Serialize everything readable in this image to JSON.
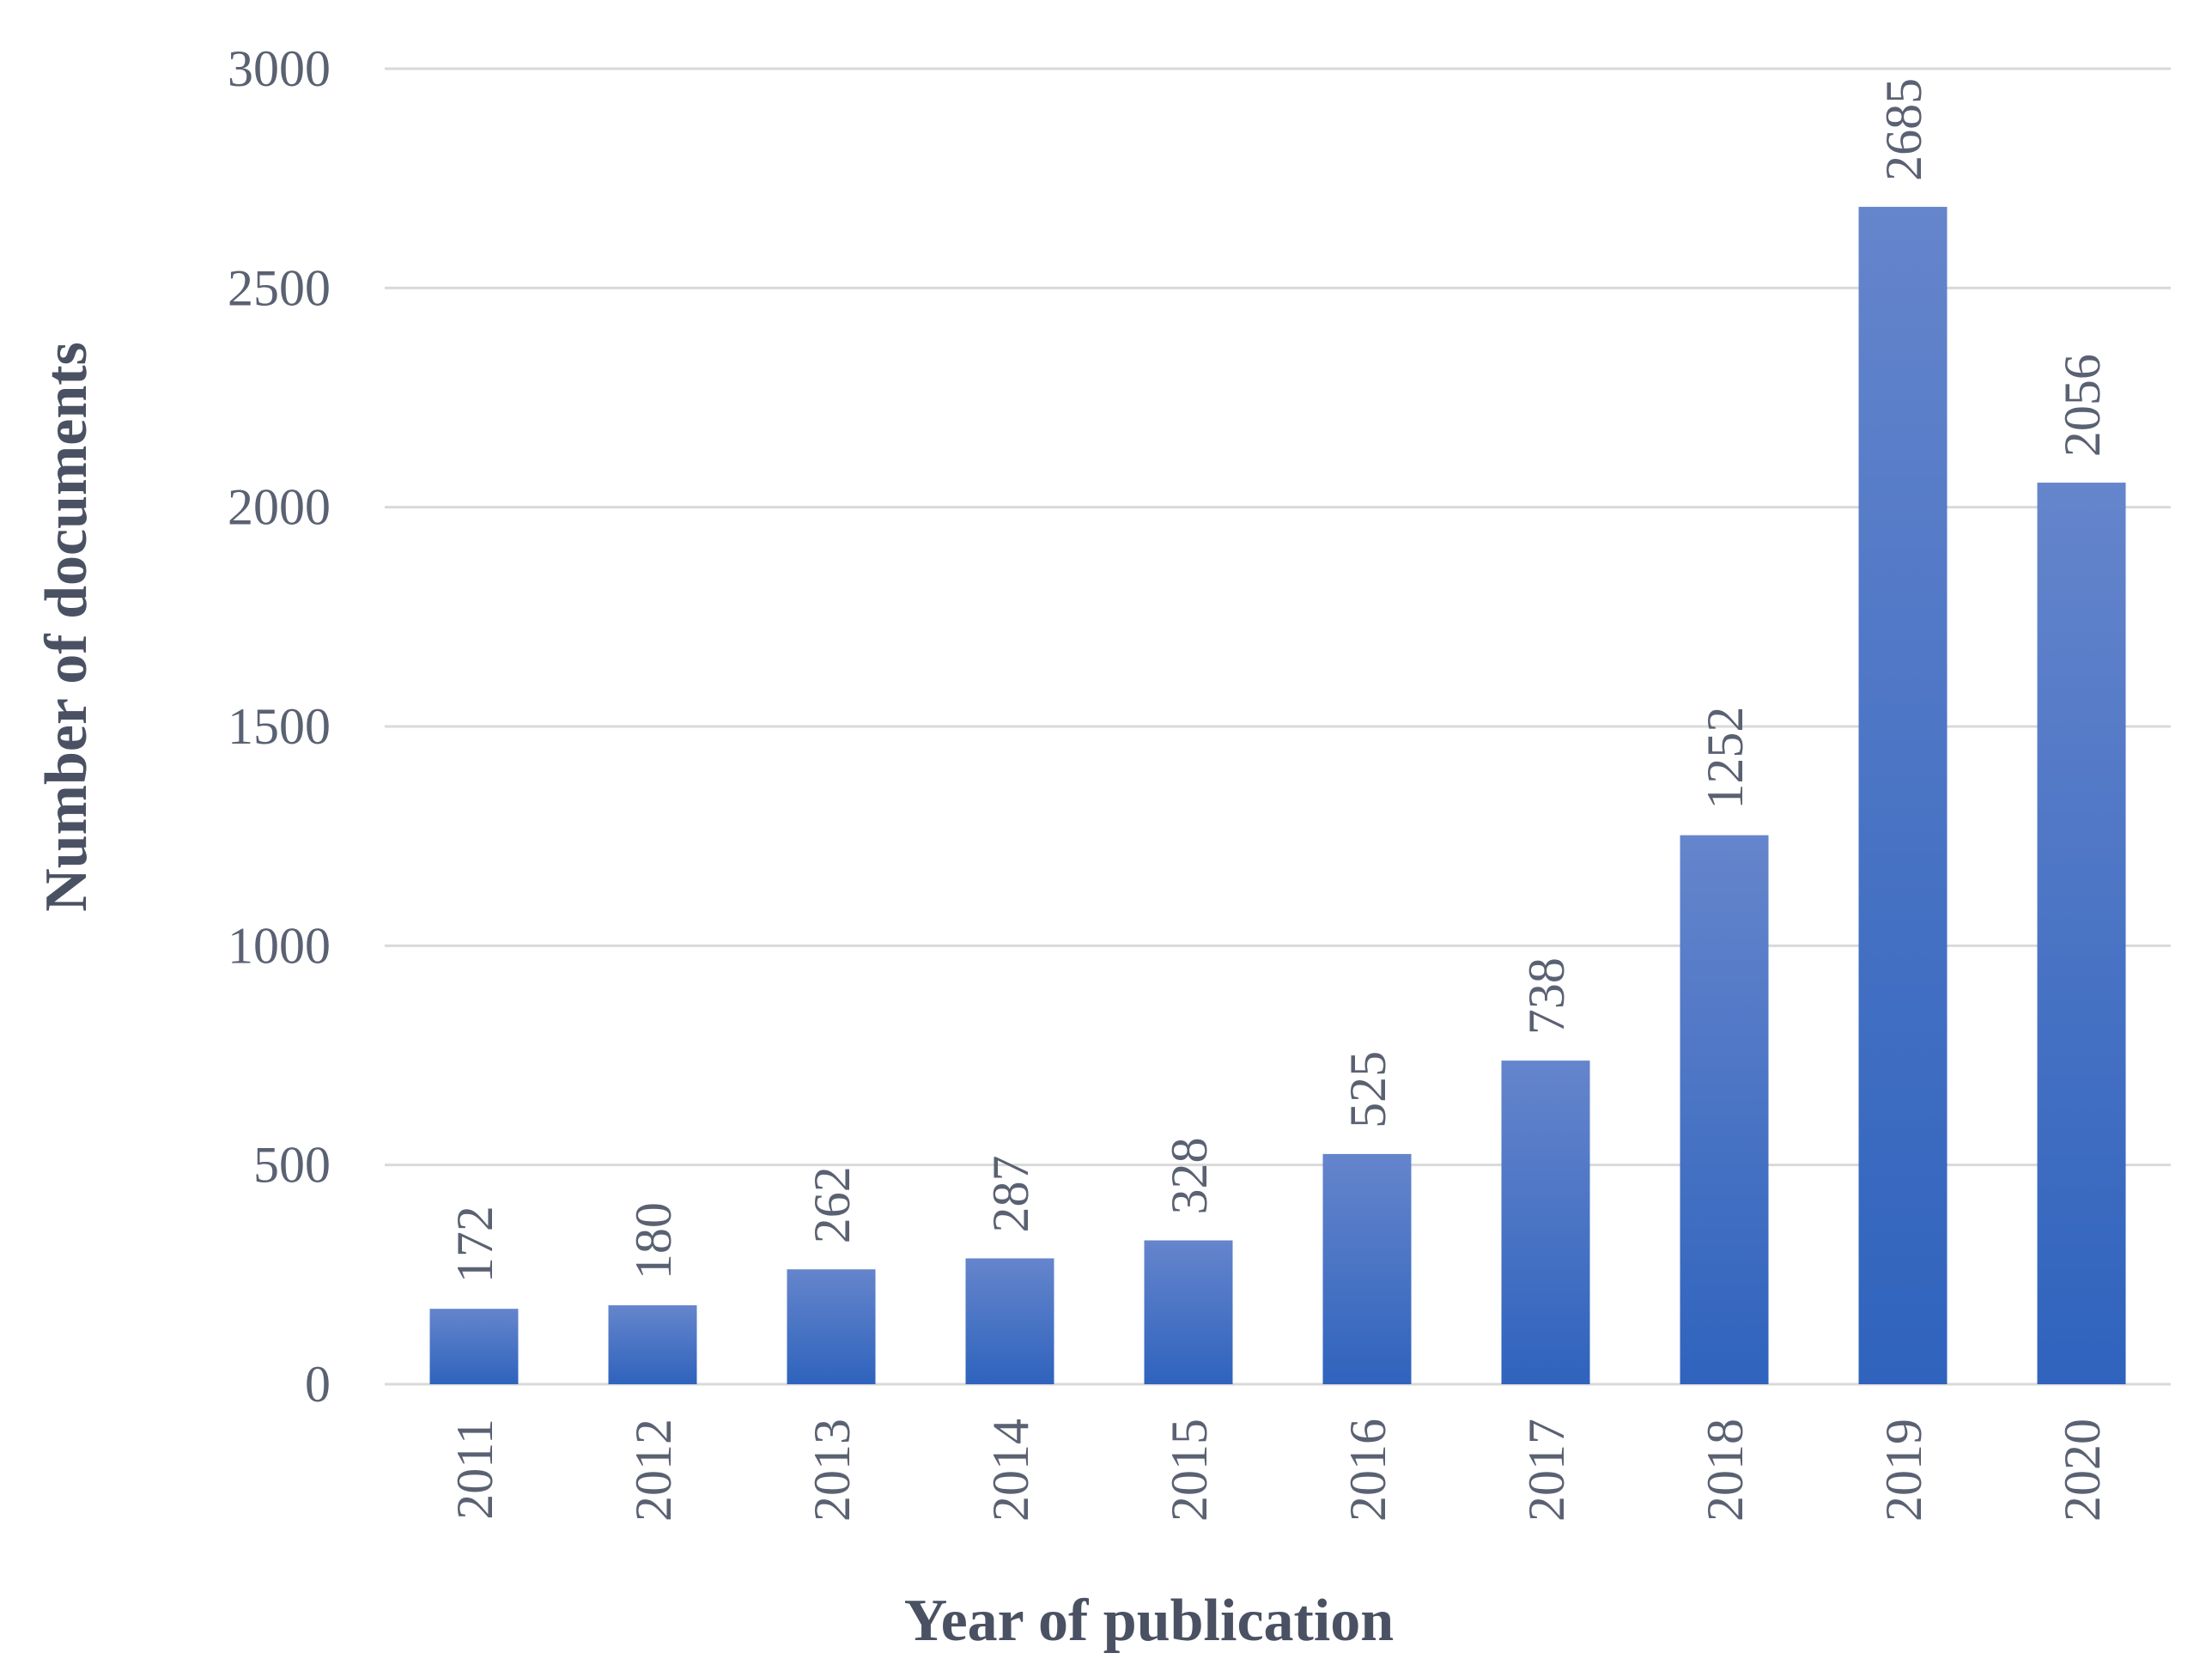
{
  "chart_data": {
    "type": "bar",
    "title": "",
    "xlabel": "Year of publication",
    "ylabel": "Number of documents",
    "categories": [
      "2011",
      "2012",
      "2013",
      "2014",
      "2015",
      "2016",
      "2017",
      "2018",
      "2019",
      "2020"
    ],
    "values": [
      172,
      180,
      262,
      287,
      328,
      525,
      738,
      1252,
      2685,
      2056
    ],
    "ylim": [
      0,
      3000
    ],
    "yticks": [
      0,
      500,
      1000,
      1500,
      2000,
      2500,
      3000
    ],
    "grid": true,
    "legend": "none",
    "data_labels": true,
    "colors": {
      "bar_top": "#6585cc",
      "bar_bottom": "#2f63bd",
      "grid": "#d9d9d9",
      "text": "#5a6172",
      "axis_title": "#4a5163"
    }
  }
}
